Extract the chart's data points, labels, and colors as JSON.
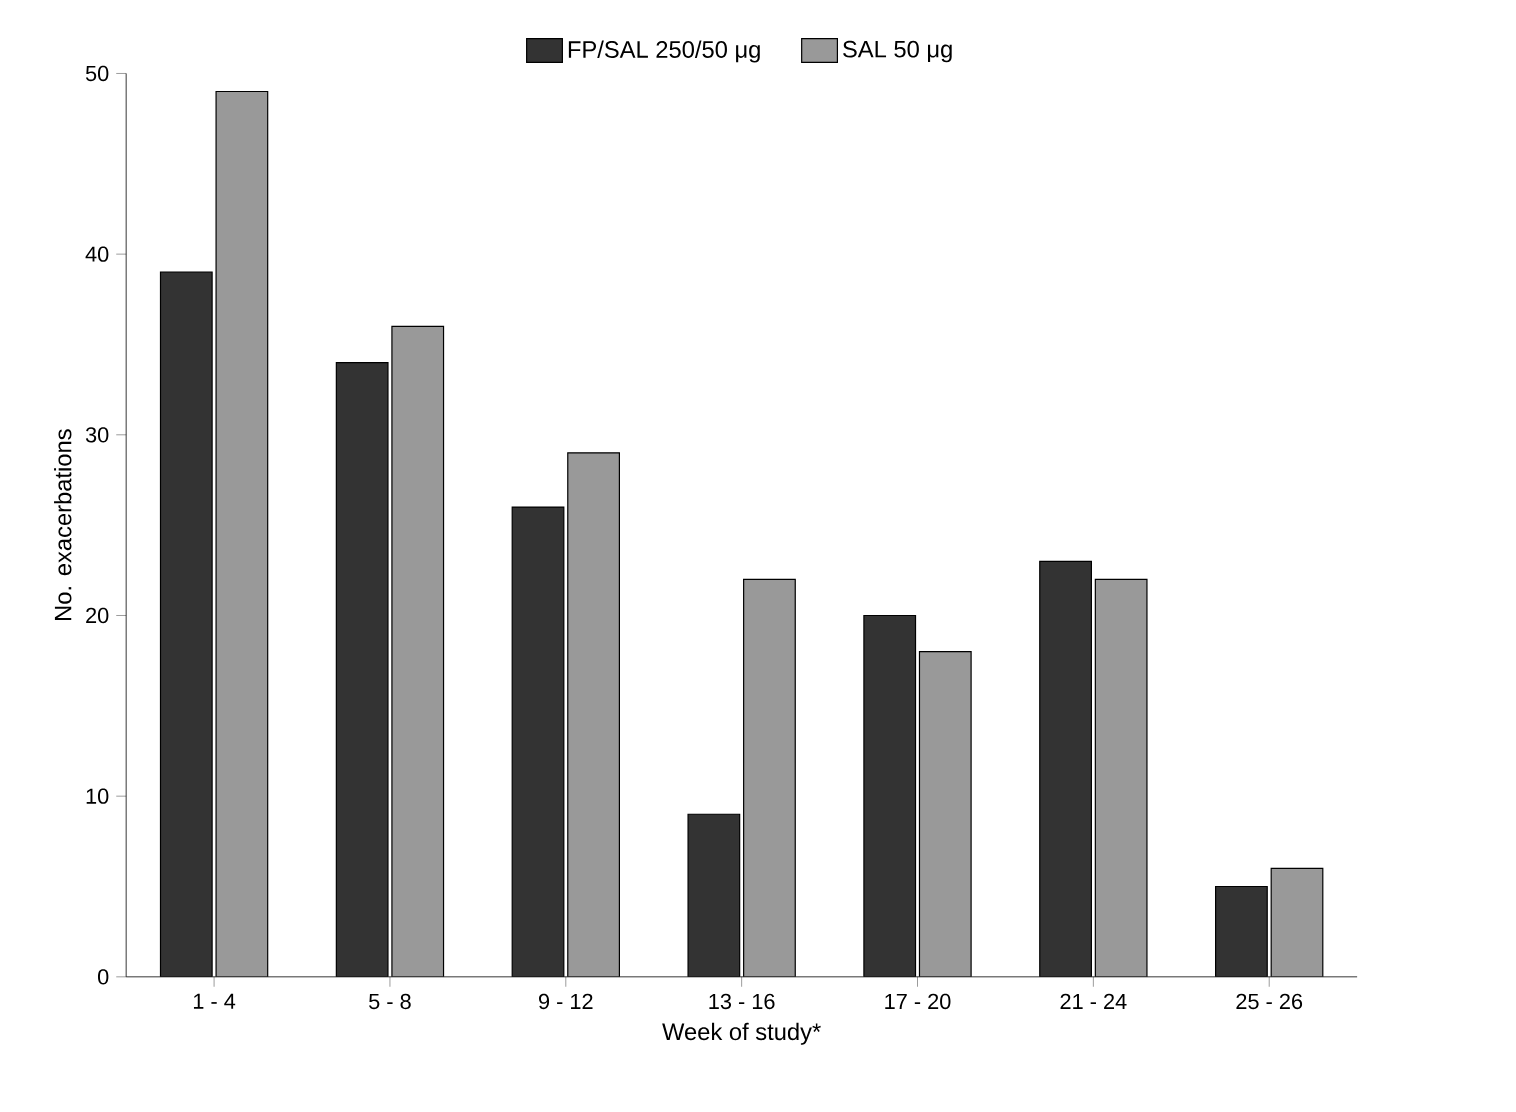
{
  "chart_data": {
    "type": "bar",
    "xlabel": "Week of study*",
    "ylabel": "No. exacerbations",
    "categories": [
      "1 - 4",
      "5 - 8",
      "9 - 12",
      "13 - 16",
      "17 - 20",
      "21 - 24",
      "25 - 26"
    ],
    "series": [
      {
        "name": "FP/SAL 250/50 μg",
        "color": "#333333",
        "values": [
          39,
          34,
          26,
          9,
          20,
          23,
          5
        ]
      },
      {
        "name": "SAL 50 μg",
        "color": "#999999",
        "values": [
          49,
          36,
          29,
          22,
          18,
          22,
          6
        ]
      }
    ],
    "ylim": [
      0,
      50
    ],
    "yticks": [
      0,
      10,
      20,
      30,
      40,
      50
    ],
    "legend": "top"
  }
}
